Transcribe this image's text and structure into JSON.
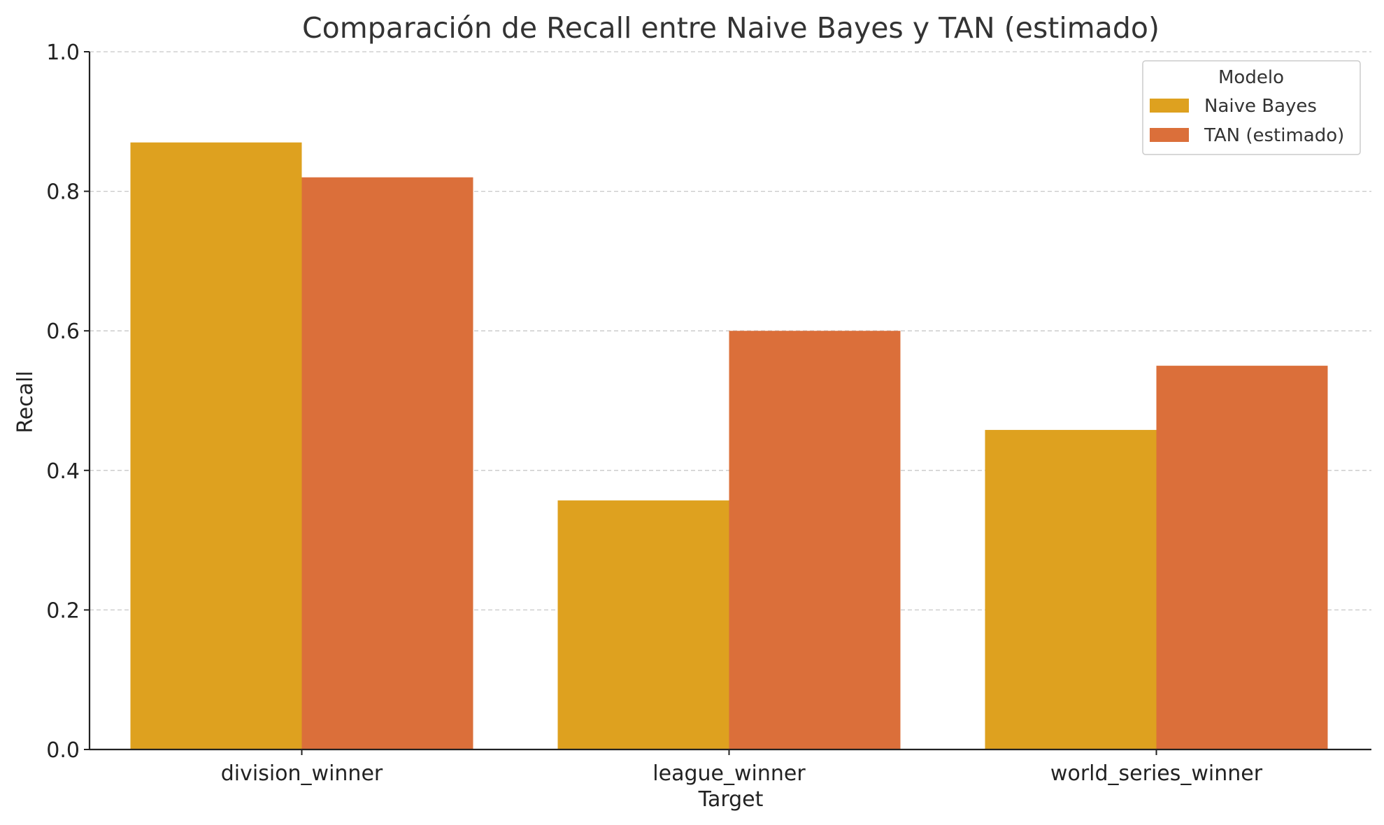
{
  "chart_data": {
    "type": "bar",
    "title": "Comparación de Recall entre Naive Bayes y TAN (estimado)",
    "xlabel": "Target",
    "ylabel": "Recall",
    "categories": [
      "division_winner",
      "league_winner",
      "world_series_winner"
    ],
    "series": [
      {
        "name": "Naive Bayes",
        "values": [
          0.87,
          0.357,
          0.458
        ],
        "color": "#DEA11F"
      },
      {
        "name": "TAN (estimado)",
        "values": [
          0.82,
          0.6,
          0.55
        ],
        "color": "#DB6F3A"
      }
    ],
    "ylim": [
      0,
      1.0
    ],
    "yticks": [
      "0.0",
      "0.2",
      "0.4",
      "0.6",
      "0.8",
      "1.0"
    ],
    "grid": true,
    "legend": {
      "title": "Modelo",
      "placement": "top-right"
    }
  }
}
